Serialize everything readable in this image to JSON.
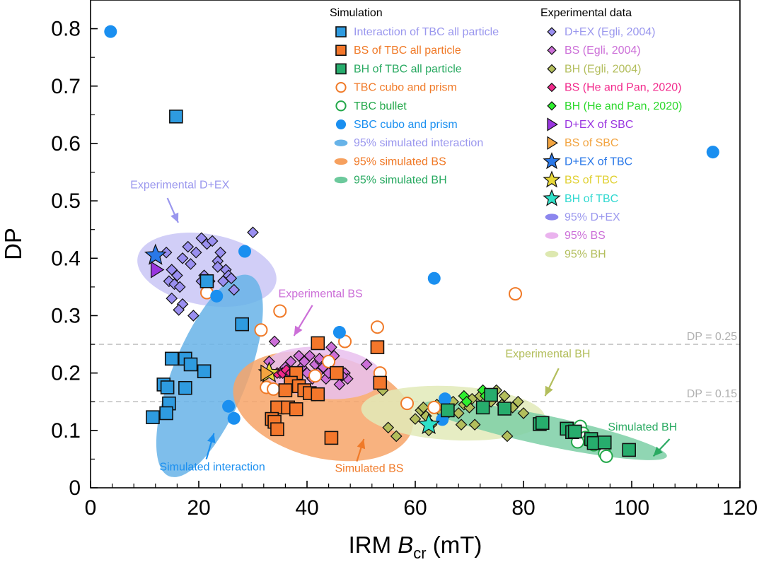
{
  "chart_data": {
    "type": "scatter",
    "xlabel_prefix": "IRM ",
    "xlabel_var": "B",
    "xlabel_sub": "cr",
    "xlabel_suffix": " (mT)",
    "ylabel": "DP",
    "xlim": [
      0,
      120
    ],
    "ylim": [
      0,
      0.85
    ],
    "xticks": [
      0,
      20,
      40,
      60,
      80,
      100,
      120
    ],
    "xtick_labels": [
      "0",
      "20",
      "40",
      "60",
      "80",
      "100",
      "120"
    ],
    "yticks": [
      0,
      0.1,
      0.2,
      0.3,
      0.4,
      0.5,
      0.6,
      0.7,
      0.8
    ],
    "ytick_labels": [
      "0",
      "0.1",
      "0.2",
      "0.3",
      "0.4",
      "0.5",
      "0.6",
      "0.7",
      "0.8"
    ],
    "reference_lines": [
      {
        "y": 0.25,
        "label": "DP = 0.25"
      },
      {
        "y": 0.15,
        "label": "DP = 0.15"
      }
    ],
    "legend_simulation": {
      "header": "Simulation",
      "entries": [
        {
          "label": "Interaction of TBC all particle",
          "marker": "square",
          "color": "#2e9be0",
          "text_color": "#9a97ee"
        },
        {
          "label": "BS of TBC all particle",
          "marker": "square",
          "color": "#f4772b",
          "text_color": "#f07a28"
        },
        {
          "label": "BH of TBC all particle",
          "marker": "square",
          "color": "#27ad6d",
          "text_color": "#2aaa62"
        },
        {
          "label": "TBC cubo and prism",
          "marker": "open-circle",
          "color": "#f07a28",
          "text_color": "#f07a28"
        },
        {
          "label": "TBC bullet",
          "marker": "open-circle",
          "color": "#23a84a",
          "text_color": "#23a84a"
        },
        {
          "label": "SBC cubo and prism",
          "marker": "circle",
          "color": "#1a8ff0",
          "text_color": "#1a8ff0"
        },
        {
          "label": "95% simulated interaction",
          "marker": "ellipse",
          "color": "#67b3e8",
          "text_color": "#9a97ee"
        },
        {
          "label": "95% simulated BS",
          "marker": "ellipse",
          "color": "#f6a05e",
          "text_color": "#f07a28"
        },
        {
          "label": "95% simulated BH",
          "marker": "ellipse",
          "color": "#6cc99c",
          "text_color": "#2aaa62"
        }
      ]
    },
    "legend_experimental": {
      "header": "Experimental data",
      "entries": [
        {
          "label": "D+EX (Egli, 2004)",
          "marker": "diamond",
          "color": "#9a8ff0",
          "text_color": "#9a97ee"
        },
        {
          "label": "BS (Egli, 2004)",
          "marker": "diamond",
          "color": "#cc6fd8",
          "text_color": "#cc6fd8"
        },
        {
          "label": "BH (Egli, 2004)",
          "marker": "diamond",
          "color": "#b3be5c",
          "text_color": "#b3be5c"
        },
        {
          "label": "BS (He and Pan, 2020)",
          "marker": "diamond",
          "color": "#f22a8c",
          "text_color": "#f22a8c"
        },
        {
          "label": "BH (He and Pan, 2020)",
          "marker": "diamond",
          "color": "#2ef02e",
          "text_color": "#2ad82a"
        },
        {
          "label": "D+EX of SBC",
          "marker": "triangle",
          "color": "#9a36e0",
          "text_color": "#9a36e0"
        },
        {
          "label": "BS of SBC",
          "marker": "triangle",
          "color": "#f2a440",
          "text_color": "#f2a440"
        },
        {
          "label": "D+EX of TBC",
          "marker": "star",
          "color": "#2a78e8",
          "text_color": "#2a78e8"
        },
        {
          "label": "BS of TBC",
          "marker": "star",
          "color": "#e8d838",
          "text_color": "#e0d030"
        },
        {
          "label": "BH of TBC",
          "marker": "star",
          "color": "#2fe0c8",
          "text_color": "#2fd8d0"
        },
        {
          "label": "95% D+EX",
          "marker": "ellipse",
          "color": "#8c86ee",
          "text_color": "#9a97ee"
        },
        {
          "label": "95% BS",
          "marker": "ellipse",
          "color": "#eab3ee",
          "text_color": "#cc6fd8"
        },
        {
          "label": "95% BH",
          "marker": "ellipse",
          "color": "#dde8b0",
          "text_color": "#b3be5c"
        }
      ]
    },
    "ellipses": [
      {
        "name": "95% D+EX",
        "cx": 21.5,
        "cy": 0.38,
        "rx": 13.0,
        "ry": 0.062,
        "rotation": -10,
        "color": "#c9c6f6"
      },
      {
        "name": "95% simulated interaction",
        "cx": 22.0,
        "cy": 0.195,
        "rx": 20.0,
        "ry": 0.065,
        "rotation": 68,
        "color": "#67b3e8"
      },
      {
        "name": "95% simulated BS",
        "cx": 43.0,
        "cy": 0.142,
        "rx": 17.0,
        "ry": 0.09,
        "rotation": -14,
        "color": "#f7a468"
      },
      {
        "name": "95% BS",
        "cx": 43.0,
        "cy": 0.2,
        "rx": 11.0,
        "ry": 0.045,
        "rotation": -5,
        "color": "#e9bfee"
      },
      {
        "name": "95% BH",
        "cx": 67.0,
        "cy": 0.13,
        "rx": 17.0,
        "ry": 0.047,
        "rotation": -3,
        "color": "#e2eab8"
      },
      {
        "name": "95% simulated BH",
        "cx": 84.0,
        "cy": 0.1,
        "rx": 23.0,
        "ry": 0.026,
        "rotation": -12,
        "color": "#7dcfa6"
      }
    ],
    "series": [
      {
        "name": "D+EX (Egli, 2004)",
        "marker": "diamond",
        "fill": "#9a8ff0",
        "points": [
          [
            14,
            0.41
          ],
          [
            15,
            0.38
          ],
          [
            14.5,
            0.36
          ],
          [
            15.5,
            0.355
          ],
          [
            16,
            0.37
          ],
          [
            17,
            0.4
          ],
          [
            16.5,
            0.35
          ],
          [
            15,
            0.33
          ],
          [
            17,
            0.32
          ],
          [
            16.3,
            0.31
          ],
          [
            18.5,
            0.39
          ],
          [
            19.5,
            0.41
          ],
          [
            20.5,
            0.435
          ],
          [
            21.5,
            0.425
          ],
          [
            22.5,
            0.43
          ],
          [
            24,
            0.41
          ],
          [
            23.5,
            0.395
          ],
          [
            21,
            0.37
          ],
          [
            22,
            0.36
          ],
          [
            24.5,
            0.36
          ],
          [
            23.5,
            0.385
          ],
          [
            25,
            0.38
          ],
          [
            25.5,
            0.37
          ],
          [
            26,
            0.365
          ],
          [
            26.5,
            0.345
          ],
          [
            19,
            0.3
          ],
          [
            20.5,
            0.36
          ],
          [
            30,
            0.445
          ],
          [
            18,
            0.42
          ]
        ]
      },
      {
        "name": "BS (Egli, 2004)",
        "marker": "diamond",
        "fill": "#cc6fd8",
        "points": [
          [
            33,
            0.22
          ],
          [
            34,
            0.255
          ],
          [
            35,
            0.2
          ],
          [
            36,
            0.21
          ],
          [
            37,
            0.22
          ],
          [
            37.5,
            0.19
          ],
          [
            38,
            0.2
          ],
          [
            38.5,
            0.23
          ],
          [
            39,
            0.21
          ],
          [
            39.5,
            0.22
          ],
          [
            40,
            0.2
          ],
          [
            40.5,
            0.23
          ],
          [
            41,
            0.19
          ],
          [
            41.5,
            0.215
          ],
          [
            42,
            0.2
          ],
          [
            42.5,
            0.22
          ],
          [
            43,
            0.21
          ],
          [
            43.5,
            0.19
          ],
          [
            44,
            0.2
          ],
          [
            44.5,
            0.245
          ],
          [
            45,
            0.23
          ],
          [
            45.5,
            0.2
          ],
          [
            46,
            0.18
          ],
          [
            47,
            0.2
          ],
          [
            47.5,
            0.19
          ],
          [
            46.5,
            0.195
          ],
          [
            51,
            0.215
          ],
          [
            42.3,
            0.225
          ]
        ]
      },
      {
        "name": "BH (Egli, 2004)",
        "marker": "diamond",
        "fill": "#b3be5c",
        "points": [
          [
            54,
            0.17
          ],
          [
            55,
            0.105
          ],
          [
            56.5,
            0.09
          ],
          [
            60,
            0.12
          ],
          [
            61,
            0.135
          ],
          [
            61.5,
            0.14
          ],
          [
            62,
            0.125
          ],
          [
            62.5,
            0.1
          ],
          [
            63,
            0.11
          ],
          [
            64,
            0.145
          ],
          [
            65,
            0.13
          ],
          [
            65.5,
            0.125
          ],
          [
            66,
            0.14
          ],
          [
            67,
            0.15
          ],
          [
            68,
            0.13
          ],
          [
            68.5,
            0.11
          ],
          [
            69,
            0.145
          ],
          [
            70,
            0.14
          ],
          [
            71,
            0.11
          ],
          [
            72,
            0.16
          ],
          [
            73,
            0.165
          ],
          [
            74,
            0.15
          ],
          [
            75,
            0.17
          ],
          [
            76,
            0.145
          ],
          [
            77,
            0.09
          ],
          [
            78,
            0.14
          ],
          [
            79,
            0.15
          ],
          [
            80,
            0.13
          ],
          [
            76.5,
            0.16
          ],
          [
            70.5,
            0.155
          ]
        ]
      },
      {
        "name": "BS (He and Pan, 2020)",
        "marker": "diamond",
        "fill": "#f22a8c",
        "points": [
          [
            34.5,
            0.2
          ],
          [
            35.5,
            0.2
          ],
          [
            36.2,
            0.205
          ],
          [
            37,
            0.2
          ]
        ]
      },
      {
        "name": "BH (He and Pan, 2020)",
        "marker": "diamond",
        "fill": "#2ef02e",
        "points": [
          [
            69,
            0.16
          ],
          [
            69.5,
            0.15
          ],
          [
            72.5,
            0.17
          ],
          [
            73,
            0.16
          ]
        ]
      },
      {
        "name": "TBC cubo and prism",
        "marker": "open-circle",
        "fill": "#f07a28",
        "points": [
          [
            31.5,
            0.275
          ],
          [
            35,
            0.308
          ],
          [
            32.5,
            0.175
          ],
          [
            33.8,
            0.172
          ],
          [
            41.5,
            0.195
          ],
          [
            47,
            0.255
          ],
          [
            53,
            0.28
          ],
          [
            53.5,
            0.2
          ],
          [
            58.5,
            0.147
          ],
          [
            63.5,
            0.14
          ],
          [
            78.5,
            0.338
          ],
          [
            21.5,
            0.34
          ],
          [
            44,
            0.22
          ]
        ]
      },
      {
        "name": "TBC bullet",
        "marker": "open-circle",
        "fill": "#23a84a",
        "points": [
          [
            90.5,
            0.107
          ],
          [
            91,
            0.095
          ],
          [
            91.5,
            0.088
          ],
          [
            92,
            0.083
          ],
          [
            90,
            0.08
          ],
          [
            93,
            0.075
          ],
          [
            95,
            0.06
          ],
          [
            95.3,
            0.055
          ]
        ]
      },
      {
        "name": "SBC cubo and prism",
        "marker": "circle",
        "fill": "#1a8ff0",
        "points": [
          [
            3.7,
            0.795
          ],
          [
            28.5,
            0.412
          ],
          [
            23.3,
            0.334
          ],
          [
            46,
            0.271
          ],
          [
            25.5,
            0.142
          ],
          [
            26.5,
            0.121
          ],
          [
            63.5,
            0.365
          ],
          [
            65.5,
            0.155
          ],
          [
            65,
            0.119
          ],
          [
            115,
            0.585
          ]
        ]
      },
      {
        "name": "Interaction of TBC all particle",
        "marker": "square",
        "fill": "#2e9be0",
        "points": [
          [
            15.8,
            0.647
          ],
          [
            21.5,
            0.36
          ],
          [
            28,
            0.285
          ],
          [
            15,
            0.225
          ],
          [
            17.5,
            0.225
          ],
          [
            18.5,
            0.215
          ],
          [
            21,
            0.203
          ],
          [
            13.5,
            0.18
          ],
          [
            14.2,
            0.175
          ],
          [
            17.5,
            0.174
          ],
          [
            14.5,
            0.147
          ],
          [
            14,
            0.13
          ],
          [
            11.5,
            0.123
          ]
        ]
      },
      {
        "name": "BS of TBC all particle",
        "marker": "square",
        "fill": "#f4772b",
        "points": [
          [
            42,
            0.252
          ],
          [
            45.5,
            0.2
          ],
          [
            53,
            0.245
          ],
          [
            53.5,
            0.183
          ],
          [
            38,
            0.2
          ],
          [
            37,
            0.183
          ],
          [
            38.5,
            0.177
          ],
          [
            39.5,
            0.17
          ],
          [
            40.5,
            0.165
          ],
          [
            42,
            0.163
          ],
          [
            36,
            0.17
          ],
          [
            34.5,
            0.14
          ],
          [
            36.5,
            0.14
          ],
          [
            38,
            0.137
          ],
          [
            33.5,
            0.12
          ],
          [
            34,
            0.115
          ],
          [
            34.5,
            0.102
          ],
          [
            44.5,
            0.087
          ]
        ]
      },
      {
        "name": "BH of TBC all particle",
        "marker": "square",
        "fill": "#27ad6d",
        "points": [
          [
            72.5,
            0.14
          ],
          [
            74,
            0.162
          ],
          [
            76.5,
            0.138
          ],
          [
            66,
            0.135
          ],
          [
            83,
            0.111
          ],
          [
            83.5,
            0.113
          ],
          [
            88,
            0.103
          ],
          [
            89,
            0.097
          ],
          [
            89.5,
            0.098
          ],
          [
            92.5,
            0.085
          ],
          [
            93,
            0.078
          ],
          [
            95,
            0.079
          ],
          [
            99.5,
            0.066
          ]
        ]
      },
      {
        "name": "D+EX of TBC",
        "marker": "star",
        "fill": "#2a78e8",
        "points": [
          [
            12,
            0.405
          ]
        ]
      },
      {
        "name": "D+EX of SBC",
        "marker": "triangle",
        "fill": "#9a36e0",
        "points": [
          [
            12.2,
            0.38
          ]
        ]
      },
      {
        "name": "BS of TBC",
        "marker": "star",
        "fill": "#e8d838",
        "points": [
          [
            33,
            0.2
          ]
        ]
      },
      {
        "name": "BS of SBC",
        "marker": "triangle",
        "fill": "#f2a440",
        "points": [
          [
            32.5,
            0.2
          ]
        ]
      },
      {
        "name": "BH of TBC",
        "marker": "star",
        "fill": "#2fe0c8",
        "points": [
          [
            62.5,
            0.11
          ]
        ]
      }
    ],
    "annotations": [
      {
        "text": "Experimental D+EX",
        "color": "#9a97ee",
        "x": 16.5,
        "y": 0.522,
        "arrow": [
          [
            14.2,
            0.505
          ],
          [
            16.2,
            0.462
          ]
        ]
      },
      {
        "text": "Experimental BS",
        "color": "#cc6fd8",
        "x": 42.5,
        "y": 0.332,
        "arrow": [
          [
            41,
            0.318
          ],
          [
            37.6,
            0.265
          ]
        ]
      },
      {
        "text": "Experimental BH",
        "color": "#b3be5c",
        "x": 84.5,
        "y": 0.227,
        "arrow": [
          [
            86.5,
            0.208
          ],
          [
            84,
            0.16
          ]
        ]
      },
      {
        "text": "Simulated interaction",
        "color": "#1a8ff0",
        "x": 22.5,
        "y": 0.03,
        "arrow": [
          [
            21.4,
            0.05
          ],
          [
            22.8,
            0.095
          ]
        ]
      },
      {
        "text": "Simulated BS",
        "color": "#f07a28",
        "x": 51.5,
        "y": 0.028,
        "arrow": [
          [
            49.2,
            0.046
          ],
          [
            50.5,
            0.085
          ]
        ]
      },
      {
        "text": "Simulated BH",
        "color": "#2aaa62",
        "x": 102,
        "y": 0.1,
        "arrow": [
          [
            107,
            0.085
          ],
          [
            104,
            0.055
          ]
        ]
      }
    ]
  }
}
